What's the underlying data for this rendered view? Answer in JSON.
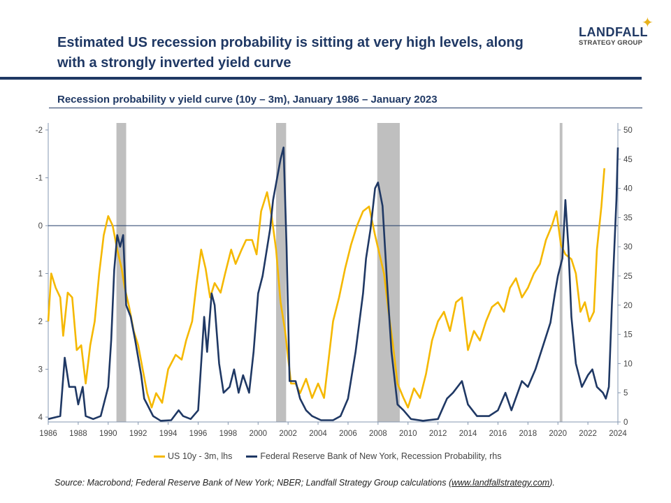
{
  "title": "Estimated US recession probability is sitting at very high levels, along with a strongly inverted yield curve",
  "logo": {
    "line1": "LANDFALL",
    "line2": "STRATEGY GROUP"
  },
  "source_prefix": "Source: Macrobond; Federal Reserve Bank of New York; NBER; Landfall Strategy Group calculations (",
  "source_link": "www.landfallstrategy.com",
  "source_suffix": ").",
  "colors": {
    "yield": "#f5b800",
    "prob": "#1f3864",
    "recession": "#bfbfbf",
    "brand": "#1f3864"
  },
  "chart_data": {
    "type": "line",
    "title": "Recession probability v yield curve (10y – 3m), January 1986 – January 2023",
    "x_ticks": [
      "1986",
      "1988",
      "1990",
      "1992",
      "1994",
      "1996",
      "1998",
      "2000",
      "2002",
      "2004",
      "2006",
      "2008",
      "2010",
      "2012",
      "2014",
      "2016",
      "2018",
      "2020",
      "2022",
      "2024"
    ],
    "xlim": [
      1986,
      2024
    ],
    "y_left": {
      "ticks": [
        "-2",
        "-1",
        "0",
        "1",
        "2",
        "3",
        "4"
      ],
      "range": [
        -2,
        4
      ],
      "inverted": true
    },
    "y_right": {
      "ticks": [
        "0",
        "5",
        "10",
        "15",
        "20",
        "25",
        "30",
        "35",
        "40",
        "45",
        "50"
      ],
      "range": [
        0,
        50
      ]
    },
    "recessions": [
      [
        1990.55,
        1991.2
      ],
      [
        2001.2,
        2001.87
      ],
      [
        2007.95,
        2009.45
      ],
      [
        2020.12,
        2020.3
      ]
    ],
    "grid": false,
    "legend_position": "bottom",
    "series": [
      {
        "name": "US 10y - 3m, lhs",
        "axis": "left",
        "color": "#f5b800",
        "points": [
          [
            1986.0,
            2.0
          ],
          [
            1986.2,
            1.0
          ],
          [
            1986.5,
            1.3
          ],
          [
            1986.8,
            1.5
          ],
          [
            1987.0,
            2.3
          ],
          [
            1987.3,
            1.4
          ],
          [
            1987.6,
            1.5
          ],
          [
            1987.9,
            2.6
          ],
          [
            1988.2,
            2.5
          ],
          [
            1988.5,
            3.3
          ],
          [
            1988.8,
            2.5
          ],
          [
            1989.1,
            2.0
          ],
          [
            1989.4,
            1.0
          ],
          [
            1989.7,
            0.2
          ],
          [
            1990.0,
            -0.2
          ],
          [
            1990.3,
            0.0
          ],
          [
            1990.6,
            0.5
          ],
          [
            1990.9,
            0.9
          ],
          [
            1991.1,
            1.3
          ],
          [
            1991.4,
            1.7
          ],
          [
            1991.7,
            2.2
          ],
          [
            1992.0,
            2.5
          ],
          [
            1992.3,
            3.0
          ],
          [
            1992.6,
            3.5
          ],
          [
            1992.9,
            3.8
          ],
          [
            1993.2,
            3.5
          ],
          [
            1993.6,
            3.7
          ],
          [
            1994.0,
            3.0
          ],
          [
            1994.5,
            2.7
          ],
          [
            1994.9,
            2.8
          ],
          [
            1995.2,
            2.4
          ],
          [
            1995.6,
            2.0
          ],
          [
            1995.9,
            1.2
          ],
          [
            1996.2,
            0.5
          ],
          [
            1996.5,
            0.9
          ],
          [
            1996.8,
            1.5
          ],
          [
            1997.1,
            1.2
          ],
          [
            1997.5,
            1.4
          ],
          [
            1997.8,
            1.0
          ],
          [
            1998.2,
            0.5
          ],
          [
            1998.5,
            0.8
          ],
          [
            1998.9,
            0.5
          ],
          [
            1999.2,
            0.3
          ],
          [
            1999.6,
            0.3
          ],
          [
            1999.9,
            0.6
          ],
          [
            2000.2,
            -0.3
          ],
          [
            2000.6,
            -0.7
          ],
          [
            2000.9,
            -0.2
          ],
          [
            2001.2,
            0.5
          ],
          [
            2001.5,
            1.6
          ],
          [
            2001.8,
            2.2
          ],
          [
            2002.2,
            3.3
          ],
          [
            2002.5,
            3.3
          ],
          [
            2002.8,
            3.5
          ],
          [
            2003.2,
            3.2
          ],
          [
            2003.6,
            3.6
          ],
          [
            2004.0,
            3.3
          ],
          [
            2004.4,
            3.6
          ],
          [
            2004.7,
            2.8
          ],
          [
            2005.0,
            2.0
          ],
          [
            2005.4,
            1.5
          ],
          [
            2005.8,
            0.9
          ],
          [
            2006.2,
            0.4
          ],
          [
            2006.6,
            0.0
          ],
          [
            2007.0,
            -0.3
          ],
          [
            2007.4,
            -0.4
          ],
          [
            2007.8,
            0.2
          ],
          [
            2008.1,
            0.6
          ],
          [
            2008.4,
            1.0
          ],
          [
            2008.7,
            1.8
          ],
          [
            2009.0,
            2.5
          ],
          [
            2009.3,
            3.3
          ],
          [
            2009.7,
            3.6
          ],
          [
            2010.0,
            3.8
          ],
          [
            2010.4,
            3.4
          ],
          [
            2010.8,
            3.6
          ],
          [
            2011.2,
            3.1
          ],
          [
            2011.6,
            2.4
          ],
          [
            2012.0,
            2.0
          ],
          [
            2012.4,
            1.8
          ],
          [
            2012.8,
            2.2
          ],
          [
            2013.2,
            1.6
          ],
          [
            2013.6,
            1.5
          ],
          [
            2014.0,
            2.6
          ],
          [
            2014.4,
            2.2
          ],
          [
            2014.8,
            2.4
          ],
          [
            2015.2,
            2.0
          ],
          [
            2015.6,
            1.7
          ],
          [
            2016.0,
            1.6
          ],
          [
            2016.4,
            1.8
          ],
          [
            2016.8,
            1.3
          ],
          [
            2017.2,
            1.1
          ],
          [
            2017.6,
            1.5
          ],
          [
            2018.0,
            1.3
          ],
          [
            2018.4,
            1.0
          ],
          [
            2018.8,
            0.8
          ],
          [
            2019.2,
            0.3
          ],
          [
            2019.6,
            0.0
          ],
          [
            2019.9,
            -0.3
          ],
          [
            2020.2,
            0.4
          ],
          [
            2020.5,
            0.6
          ],
          [
            2020.9,
            0.7
          ],
          [
            2021.2,
            1.0
          ],
          [
            2021.5,
            1.8
          ],
          [
            2021.8,
            1.6
          ],
          [
            2022.1,
            2.0
          ],
          [
            2022.4,
            1.8
          ],
          [
            2022.6,
            0.5
          ],
          [
            2022.9,
            -0.4
          ],
          [
            2023.1,
            -1.2
          ]
        ]
      },
      {
        "name": "Federal Reserve Bank of New York, Recession Probability, rhs",
        "axis": "right",
        "color": "#1f3864",
        "points": [
          [
            1986.0,
            0.5
          ],
          [
            1986.8,
            1
          ],
          [
            1987.1,
            11
          ],
          [
            1987.4,
            6
          ],
          [
            1987.8,
            6
          ],
          [
            1988.0,
            3
          ],
          [
            1988.3,
            6
          ],
          [
            1988.5,
            1
          ],
          [
            1989.0,
            0.5
          ],
          [
            1989.5,
            1
          ],
          [
            1990.0,
            6
          ],
          [
            1990.2,
            14
          ],
          [
            1990.4,
            26
          ],
          [
            1990.6,
            32
          ],
          [
            1990.8,
            30
          ],
          [
            1991.0,
            32
          ],
          [
            1991.2,
            20
          ],
          [
            1991.5,
            18
          ],
          [
            1991.8,
            14
          ],
          [
            1992.2,
            8
          ],
          [
            1992.4,
            4
          ],
          [
            1992.6,
            3
          ],
          [
            1993.0,
            1
          ],
          [
            1993.5,
            0.2
          ],
          [
            1994.2,
            0.3
          ],
          [
            1994.7,
            2
          ],
          [
            1995.0,
            1
          ],
          [
            1995.5,
            0.5
          ],
          [
            1996.0,
            2
          ],
          [
            1996.4,
            18
          ],
          [
            1996.6,
            12
          ],
          [
            1996.9,
            22
          ],
          [
            1997.1,
            20
          ],
          [
            1997.4,
            10
          ],
          [
            1997.7,
            5
          ],
          [
            1998.1,
            6
          ],
          [
            1998.4,
            9
          ],
          [
            1998.7,
            5
          ],
          [
            1999.0,
            8
          ],
          [
            1999.4,
            5
          ],
          [
            1999.7,
            12
          ],
          [
            2000.0,
            22
          ],
          [
            2000.3,
            25
          ],
          [
            2000.8,
            33
          ],
          [
            2001.0,
            38
          ],
          [
            2001.5,
            45
          ],
          [
            2001.7,
            47
          ],
          [
            2001.9,
            30
          ],
          [
            2002.1,
            7
          ],
          [
            2002.5,
            7
          ],
          [
            2002.8,
            4
          ],
          [
            2003.2,
            2
          ],
          [
            2003.6,
            1
          ],
          [
            2004.2,
            0.3
          ],
          [
            2005.0,
            0.3
          ],
          [
            2005.5,
            1
          ],
          [
            2006.0,
            4
          ],
          [
            2006.5,
            12
          ],
          [
            2007.0,
            22
          ],
          [
            2007.2,
            28
          ],
          [
            2007.5,
            33
          ],
          [
            2007.8,
            40
          ],
          [
            2008.0,
            41
          ],
          [
            2008.3,
            37
          ],
          [
            2008.6,
            24
          ],
          [
            2008.9,
            12
          ],
          [
            2009.3,
            3
          ],
          [
            2009.7,
            2
          ],
          [
            2010.2,
            0.5
          ],
          [
            2011.0,
            0.2
          ],
          [
            2012.0,
            0.5
          ],
          [
            2012.6,
            4
          ],
          [
            2013.0,
            5
          ],
          [
            2013.6,
            7
          ],
          [
            2014.0,
            3
          ],
          [
            2014.6,
            1
          ],
          [
            2015.4,
            1
          ],
          [
            2016.0,
            2
          ],
          [
            2016.5,
            5
          ],
          [
            2016.9,
            2
          ],
          [
            2017.6,
            7
          ],
          [
            2018.0,
            6
          ],
          [
            2018.5,
            9
          ],
          [
            2019.0,
            13
          ],
          [
            2019.5,
            17
          ],
          [
            2019.8,
            22
          ],
          [
            2020.0,
            25
          ],
          [
            2020.3,
            28
          ],
          [
            2020.5,
            38
          ],
          [
            2020.7,
            30
          ],
          [
            2020.9,
            18
          ],
          [
            2021.2,
            10
          ],
          [
            2021.6,
            6
          ],
          [
            2022.0,
            8
          ],
          [
            2022.3,
            9
          ],
          [
            2022.6,
            6
          ],
          [
            2023.0,
            5
          ],
          [
            2023.2,
            4
          ],
          [
            2023.4,
            6
          ],
          [
            2023.6,
            20
          ],
          [
            2023.9,
            38
          ],
          [
            2024.0,
            47
          ]
        ]
      }
    ]
  }
}
